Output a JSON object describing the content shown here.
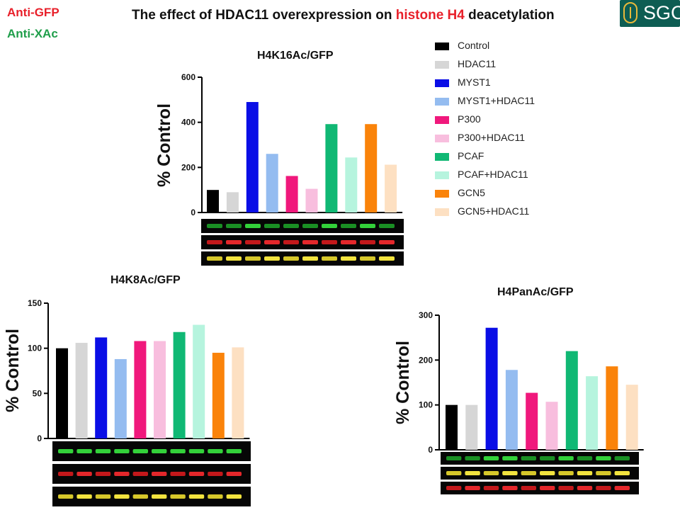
{
  "header": {
    "label_anti_gfp": "Anti-GFP",
    "label_anti_xac": "Anti-XAc",
    "title_prefix": "The effect of HDAC11 overexpression on ",
    "title_highlight": "histone H4",
    "title_suffix": " deacetylation",
    "logo_text": "SGC"
  },
  "legend": [
    {
      "label": "Control",
      "color": "#000000"
    },
    {
      "label": "HDAC11",
      "color": "#d6d6d6"
    },
    {
      "label": "MYST1",
      "color": "#0a0ee6"
    },
    {
      "label": "MYST1+HDAC11",
      "color": "#94bcf0"
    },
    {
      "label": "P300",
      "color": "#f0187c"
    },
    {
      "label": "P300+HDAC11",
      "color": "#f8bede"
    },
    {
      "label": "PCAF",
      "color": "#10b874"
    },
    {
      "label": "PCAF+HDAC11",
      "color": "#b6f4de"
    },
    {
      "label": "GCN5",
      "color": "#fa830a"
    },
    {
      "label": "GCN5+HDAC11",
      "color": "#fde0c2"
    }
  ],
  "chart_data": [
    {
      "type": "bar",
      "title": "H4K16Ac/GFP",
      "ylabel": "% Control",
      "ylim": [
        0,
        600
      ],
      "yticks": [
        "0",
        "200",
        "400",
        "600"
      ],
      "categories": [
        "Control",
        "HDAC11",
        "MYST1",
        "MYST1+HDAC11",
        "P300",
        "P300+HDAC11",
        "PCAF",
        "PCAF+HDAC11",
        "GCN5",
        "GCN5+HDAC11"
      ],
      "values": [
        100,
        90,
        490,
        260,
        162,
        105,
        392,
        244,
        392,
        212
      ]
    },
    {
      "type": "bar",
      "title": "H4K8Ac/GFP",
      "ylabel": "% Control",
      "ylim": [
        0,
        150
      ],
      "yticks": [
        "0",
        "50",
        "100",
        "150"
      ],
      "categories": [
        "Control",
        "HDAC11",
        "MYST1",
        "MYST1+HDAC11",
        "P300",
        "P300+HDAC11",
        "PCAF",
        "PCAF+HDAC11",
        "GCN5",
        "GCN5+HDAC11"
      ],
      "values": [
        100,
        106,
        112,
        88,
        108,
        108,
        118,
        126,
        95,
        101
      ]
    },
    {
      "type": "bar",
      "title": "H4PanAc/GFP",
      "ylabel": "% Control",
      "ylim": [
        0,
        300
      ],
      "yticks": [
        "0",
        "100",
        "200",
        "300"
      ],
      "categories": [
        "Control",
        "HDAC11",
        "MYST1",
        "MYST1+HDAC11",
        "P300",
        "P300+HDAC11",
        "PCAF",
        "PCAF+HDAC11",
        "GCN5",
        "GCN5+HDAC11"
      ],
      "values": [
        100,
        100,
        272,
        178,
        127,
        107,
        220,
        164,
        186,
        145
      ]
    }
  ]
}
